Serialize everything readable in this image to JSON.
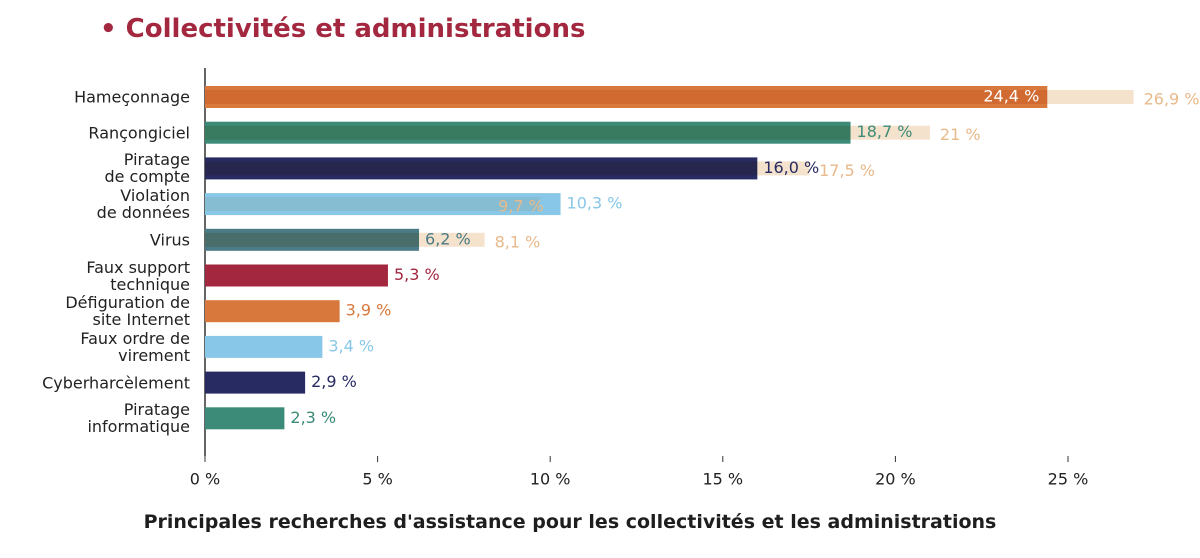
{
  "chart_data": {
    "type": "bar",
    "orientation": "horizontal",
    "title": "• Collectivités et administrations",
    "caption": "Principales recherches d'assistance pour les collectivités et les administrations",
    "categories": [
      "Hameçonnage",
      "Rançongiciel",
      "Piratage\nde compte",
      "Violation\nde données",
      "Virus",
      "Faux support\ntechnique",
      "Défiguration de\nsite Internet",
      "Faux ordre de\nvirement",
      "Cyberharcèlement",
      "Piratage\ninformatique"
    ],
    "series": [
      {
        "colors": [
          "#d9783c",
          "#3b8b78",
          "#272b62",
          "#88c7e7",
          "#4b7b85",
          "#a3283f",
          "#d9783c",
          "#88c7e7",
          "#272b62",
          "#3b8b78"
        ],
        "values": [
          24.4,
          18.7,
          16.0,
          10.3,
          6.2,
          5.3,
          3.9,
          3.4,
          2.9,
          2.3
        ],
        "value_labels": [
          "24,4 %",
          "18,7 %",
          "16,0 %",
          "10,3 %",
          "6,2 %",
          "5,3 %",
          "3,9 %",
          "3,4 %",
          "2,9 %",
          "2,3 %"
        ]
      },
      {
        "color": "#f5e2cd",
        "label_color": "#e8b98a",
        "values": [
          26.9,
          21,
          17.5,
          9.7,
          8.1,
          null,
          null,
          null,
          null,
          null
        ],
        "value_labels": [
          "26,9 %",
          "21 %",
          "17,5 %",
          "9,7 %",
          "8,1 %",
          null,
          null,
          null,
          null,
          null
        ]
      }
    ],
    "xlim": [
      0,
      25
    ],
    "xticks": [
      {
        "value": 0,
        "label": "0 %"
      },
      {
        "value": 5,
        "label": "5 %"
      },
      {
        "value": 10,
        "label": "10 %"
      },
      {
        "value": 15,
        "label": "15 %"
      },
      {
        "value": 20,
        "label": "20 %"
      },
      {
        "value": 25,
        "label": "25 %"
      }
    ]
  }
}
